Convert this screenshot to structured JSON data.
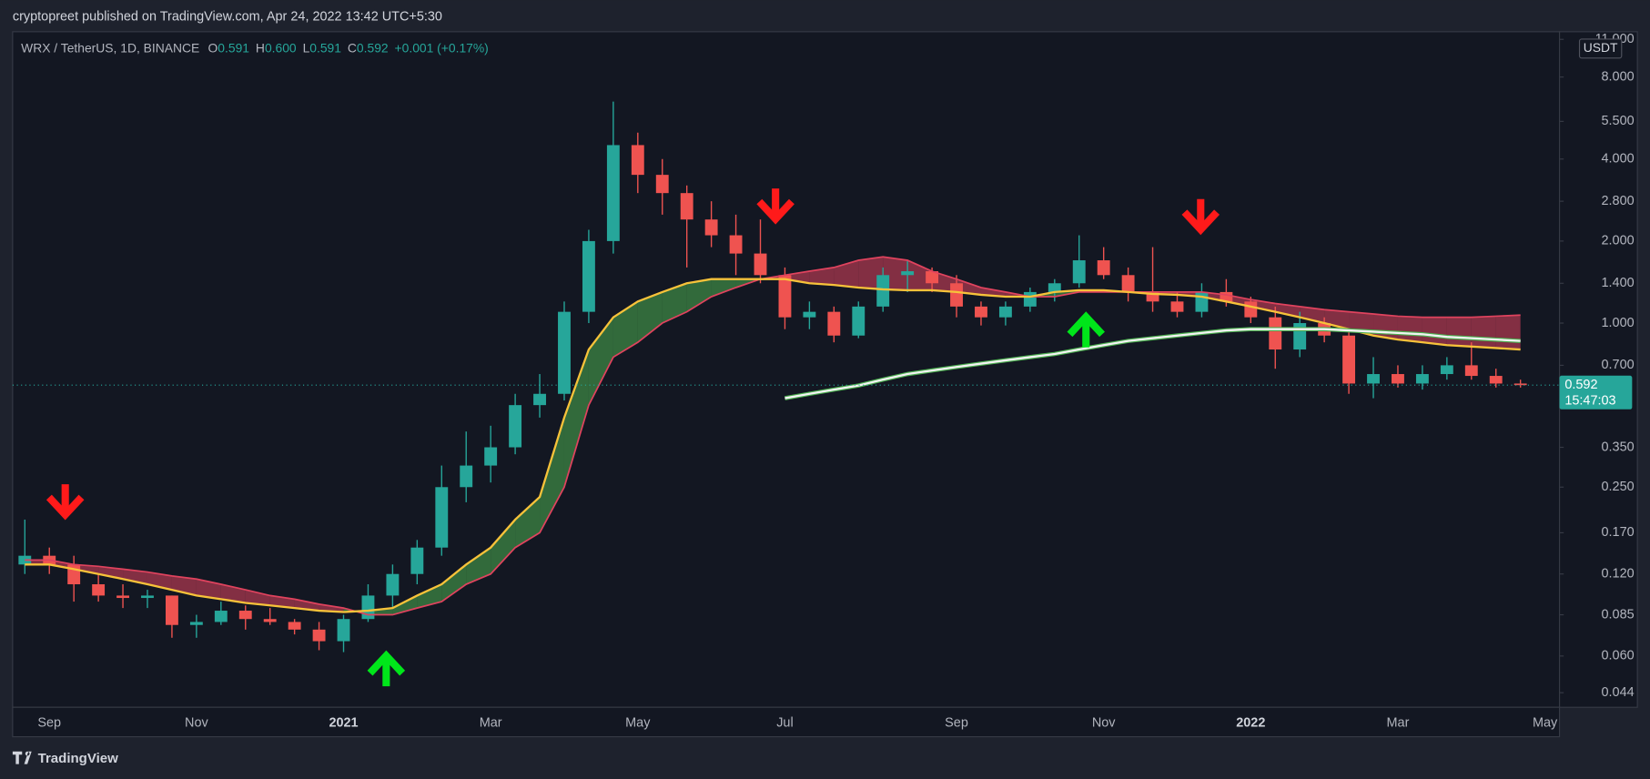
{
  "header": {
    "byline": "cryptopreet published on TradingView.com, Apr 24, 2022 13:42 UTC+5:30"
  },
  "chart_data": {
    "type": "candlestick",
    "title": "WRX / TetherUS, 1D, BINANCE",
    "legend_items": [
      {
        "key": "O",
        "value": "0.591"
      },
      {
        "key": "H",
        "value": "0.600"
      },
      {
        "key": "L",
        "value": "0.591"
      },
      {
        "key": "C",
        "value": "0.592"
      }
    ],
    "change": "+0.001 (+0.17%)",
    "currency": "USDT",
    "categories": [
      null,
      "Sep",
      null,
      null,
      null,
      null,
      null,
      "Nov",
      null,
      null,
      null,
      null,
      null,
      "2021",
      null,
      null,
      null,
      null,
      null,
      "Mar",
      null,
      null,
      null,
      null,
      null,
      "May",
      null,
      null,
      null,
      null,
      null,
      "Jul",
      null,
      null,
      null,
      null,
      null,
      null,
      "Sep",
      null,
      null,
      null,
      null,
      null,
      "Nov",
      null,
      null,
      null,
      null,
      null,
      "2022",
      null,
      null,
      null,
      null,
      null,
      "Mar",
      null,
      null,
      null,
      null,
      null,
      "May"
    ],
    "open": [
      0.13,
      0.14,
      0.13,
      0.11,
      0.1,
      0.098,
      0.1,
      0.078,
      0.08,
      0.088,
      0.082,
      0.08,
      0.075,
      0.068,
      0.082,
      0.1,
      0.12,
      0.15,
      0.25,
      0.3,
      0.35,
      0.5,
      0.55,
      1.1,
      2.0,
      4.5,
      3.5,
      3.0,
      2.4,
      2.1,
      1.8,
      1.5,
      1.05,
      1.1,
      0.9,
      1.15,
      1.5,
      1.55,
      1.4,
      1.15,
      1.05,
      1.15,
      1.3,
      1.4,
      1.7,
      1.5,
      1.3,
      1.2,
      1.1,
      1.3,
      1.2,
      1.05,
      0.8,
      1.0,
      0.9,
      0.6,
      0.65,
      0.6,
      0.65,
      0.7,
      0.64,
      0.6,
      null
    ],
    "high": [
      0.19,
      0.15,
      0.14,
      0.12,
      0.11,
      0.105,
      0.1,
      0.085,
      0.095,
      0.092,
      0.09,
      0.082,
      0.08,
      0.085,
      0.11,
      0.13,
      0.16,
      0.3,
      0.4,
      0.42,
      0.55,
      0.65,
      1.2,
      2.2,
      6.5,
      5.0,
      4.0,
      3.2,
      2.8,
      2.5,
      2.4,
      1.6,
      1.2,
      1.15,
      1.2,
      1.6,
      1.7,
      1.6,
      1.5,
      1.2,
      1.2,
      1.35,
      1.45,
      2.1,
      1.9,
      1.6,
      1.9,
      1.3,
      1.4,
      1.45,
      1.25,
      1.15,
      1.1,
      1.05,
      0.95,
      0.75,
      0.7,
      0.7,
      0.75,
      0.85,
      0.68,
      0.62,
      null
    ],
    "low": [
      0.12,
      0.12,
      0.095,
      0.095,
      0.09,
      0.09,
      0.07,
      0.07,
      0.078,
      0.075,
      0.078,
      0.072,
      0.063,
      0.062,
      0.08,
      0.09,
      0.11,
      0.14,
      0.22,
      0.26,
      0.33,
      0.45,
      0.52,
      1.0,
      1.8,
      3.0,
      2.5,
      1.6,
      1.9,
      1.5,
      1.4,
      0.95,
      0.95,
      0.85,
      0.88,
      1.1,
      1.3,
      1.3,
      1.05,
      0.98,
      0.98,
      1.1,
      1.2,
      1.35,
      1.45,
      1.2,
      1.1,
      1.05,
      1.05,
      1.15,
      1.0,
      0.68,
      0.75,
      0.85,
      0.55,
      0.53,
      0.58,
      0.57,
      0.62,
      0.62,
      0.58,
      0.58,
      null
    ],
    "close": [
      0.14,
      0.13,
      0.11,
      0.1,
      0.098,
      0.1,
      0.078,
      0.08,
      0.088,
      0.082,
      0.08,
      0.075,
      0.068,
      0.082,
      0.1,
      0.12,
      0.15,
      0.25,
      0.3,
      0.35,
      0.5,
      0.55,
      1.1,
      2.0,
      4.5,
      3.5,
      3.0,
      2.4,
      2.1,
      1.8,
      1.5,
      1.05,
      1.1,
      0.9,
      1.15,
      1.5,
      1.55,
      1.4,
      1.15,
      1.05,
      1.15,
      1.3,
      1.4,
      1.7,
      1.5,
      1.3,
      1.2,
      1.1,
      1.3,
      1.2,
      1.05,
      0.8,
      1.0,
      0.9,
      0.6,
      0.65,
      0.6,
      0.65,
      0.7,
      0.64,
      0.6,
      0.592,
      null
    ],
    "up_color": "#26a69a",
    "down_color": "#ef5350",
    "trend_line": {
      "color": "#f7c23a",
      "values": [
        0.13,
        0.13,
        0.125,
        0.12,
        0.115,
        0.11,
        0.105,
        0.1,
        0.097,
        0.094,
        0.092,
        0.09,
        0.088,
        0.087,
        0.088,
        0.09,
        0.1,
        0.11,
        0.13,
        0.15,
        0.19,
        0.23,
        0.45,
        0.8,
        1.05,
        1.2,
        1.3,
        1.4,
        1.45,
        1.45,
        1.45,
        1.45,
        1.4,
        1.38,
        1.35,
        1.33,
        1.32,
        1.32,
        1.3,
        1.27,
        1.25,
        1.25,
        1.3,
        1.32,
        1.32,
        1.3,
        1.28,
        1.27,
        1.25,
        1.2,
        1.15,
        1.1,
        1.05,
        1.0,
        0.95,
        0.9,
        0.87,
        0.85,
        0.83,
        0.82,
        0.81,
        0.8,
        null
      ]
    },
    "cloud": {
      "bull_color": "#4caf50",
      "bear_color": "#e0435e",
      "values": [
        0.135,
        0.135,
        0.13,
        0.128,
        0.125,
        0.122,
        0.118,
        0.115,
        0.11,
        0.105,
        0.1,
        0.097,
        0.093,
        0.09,
        0.085,
        0.085,
        0.09,
        0.095,
        0.11,
        0.12,
        0.15,
        0.17,
        0.25,
        0.5,
        0.75,
        0.85,
        1.0,
        1.1,
        1.25,
        1.35,
        1.45,
        1.5,
        1.55,
        1.6,
        1.7,
        1.75,
        1.7,
        1.55,
        1.45,
        1.35,
        1.3,
        1.25,
        1.25,
        1.3,
        1.3,
        1.3,
        1.3,
        1.3,
        1.3,
        1.27,
        1.22,
        1.18,
        1.15,
        1.12,
        1.1,
        1.08,
        1.06,
        1.05,
        1.05,
        1.05,
        1.06,
        1.07,
        null
      ]
    },
    "moving_average": {
      "color": "#f2f2f2",
      "values": [
        null,
        null,
        null,
        null,
        null,
        null,
        null,
        null,
        null,
        null,
        null,
        null,
        null,
        null,
        null,
        null,
        null,
        null,
        null,
        null,
        null,
        null,
        null,
        null,
        null,
        null,
        null,
        null,
        null,
        null,
        null,
        0.53,
        0.55,
        0.57,
        0.59,
        0.62,
        0.65,
        0.67,
        0.69,
        0.71,
        0.73,
        0.75,
        0.77,
        0.8,
        0.83,
        0.86,
        0.88,
        0.9,
        0.92,
        0.94,
        0.95,
        0.95,
        0.95,
        0.95,
        0.94,
        0.93,
        0.92,
        0.91,
        0.89,
        0.88,
        0.87,
        0.86,
        null
      ]
    },
    "ylim": [
      0.0389,
      11.73
    ],
    "log_scale": true,
    "yticks": [
      {
        "value": 0.044,
        "label": "0.044"
      },
      {
        "value": 0.06,
        "label": "0.060"
      },
      {
        "value": 0.085,
        "label": "0.085"
      },
      {
        "value": 0.12,
        "label": "0.120"
      },
      {
        "value": 0.17,
        "label": "0.170"
      },
      {
        "value": 0.25,
        "label": "0.250"
      },
      {
        "value": 0.35,
        "label": "0.350"
      },
      {
        "value": 0.7,
        "label": "0.700"
      },
      {
        "value": 1,
        "label": "1.000"
      },
      {
        "value": 1.4,
        "label": "1.400"
      },
      {
        "value": 2,
        "label": "2.000"
      },
      {
        "value": 2.8,
        "label": "2.800"
      },
      {
        "value": 4,
        "label": "4.000"
      },
      {
        "value": 5.5,
        "label": "5.500"
      },
      {
        "value": 8,
        "label": "8.000"
      },
      {
        "value": 11,
        "label": "11.000"
      }
    ],
    "grid": false,
    "last_price_label": "0.592",
    "countdown": "15:47:03"
  },
  "footer": {
    "brand": "TradingView"
  }
}
